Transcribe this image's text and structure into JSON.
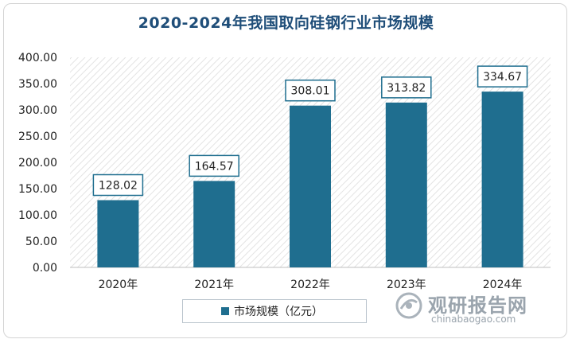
{
  "chart_data": {
    "type": "bar",
    "title": "2020-2024年我国取向硅钢行业市场规模",
    "categories": [
      "2020年",
      "2021年",
      "2022年",
      "2023年",
      "2024年"
    ],
    "series": [
      {
        "name": "市场规模（亿元）",
        "values": [
          128.02,
          164.57,
          308.01,
          313.82,
          334.67
        ]
      }
    ],
    "data_labels": [
      "128.02",
      "164.57",
      "308.01",
      "313.82",
      "334.67"
    ],
    "y_ticks": [
      "0.00",
      "50.00",
      "100.00",
      "150.00",
      "200.00",
      "250.00",
      "300.00",
      "350.00",
      "400.00"
    ],
    "ylim": [
      0,
      400
    ],
    "xlabel": "",
    "ylabel": "",
    "grid": false,
    "legend_position": "bottom",
    "colors": {
      "bar": "#1f6e8f",
      "title": "#1f4e79",
      "label_border": "#1f6e8f"
    }
  },
  "watermark": {
    "name": "观研报告网",
    "url": "chinabaogao.com"
  }
}
